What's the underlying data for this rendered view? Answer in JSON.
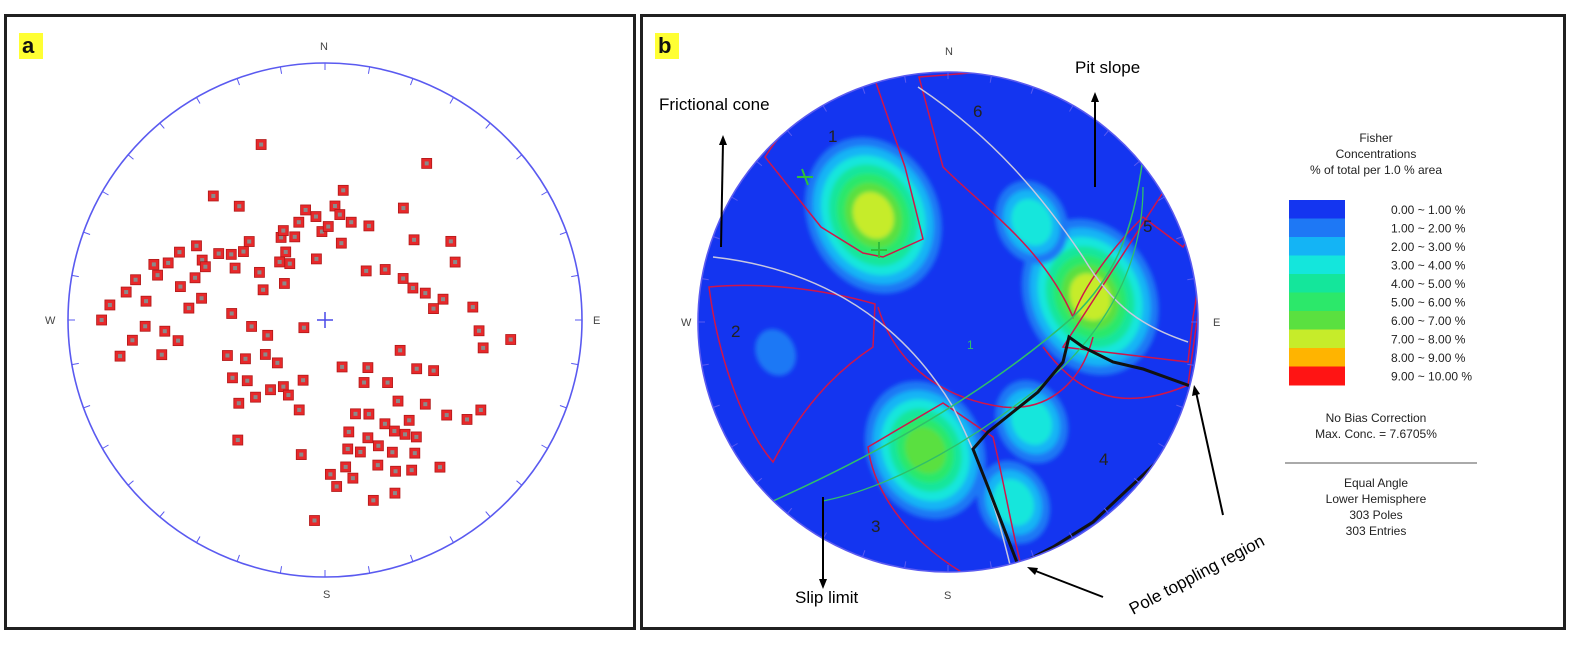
{
  "chart_data": [
    {
      "type": "scatter",
      "panel_label": "a",
      "plot": "equal-angle stereonet, pole plot",
      "direction_labels": {
        "N": "N",
        "E": "E",
        "S": "S",
        "W": "W"
      },
      "marker_color": "#e8282a",
      "net_color": "#5a5af0",
      "note": "poles as (trend, plunge) in degrees, read approximately from the net",
      "poles": [
        [
          332,
          50
        ],
        [
          330,
          56
        ],
        [
          335,
          48
        ],
        [
          340,
          52
        ],
        [
          350,
          43
        ],
        [
          355,
          46
        ],
        [
          358,
          52
        ],
        [
          345,
          47
        ],
        [
          328,
          61
        ],
        [
          352,
          63
        ],
        [
          15,
          47
        ],
        [
          5,
          42
        ],
        [
          8,
          45
        ],
        [
          2,
          50
        ],
        [
          290,
          24
        ],
        [
          295,
          26
        ],
        [
          300,
          30
        ],
        [
          285,
          22
        ],
        [
          288,
          20
        ],
        [
          296,
          34
        ],
        [
          302,
          38
        ],
        [
          305,
          42
        ],
        [
          310,
          45
        ],
        [
          282,
          16
        ],
        [
          278,
          14
        ],
        [
          274,
          10
        ],
        [
          270,
          8
        ],
        [
          276,
          20
        ],
        [
          283,
          30
        ],
        [
          288,
          34
        ],
        [
          294,
          36
        ],
        [
          268,
          20
        ],
        [
          264,
          16
        ],
        [
          260,
          12
        ],
        [
          266,
          26
        ],
        [
          275,
          34
        ],
        [
          280,
          38
        ],
        [
          262,
          30
        ],
        [
          258,
          24
        ],
        [
          300,
          46
        ],
        [
          316,
          44
        ],
        [
          322,
          58
        ],
        [
          312,
          66
        ],
        [
          306,
          55
        ],
        [
          296,
          60
        ],
        [
          318,
          24
        ],
        [
          323,
          32
        ],
        [
          340,
          18
        ],
        [
          8,
          36
        ],
        [
          12,
          56
        ],
        [
          25,
          46
        ],
        [
          35,
          34
        ],
        [
          33,
          18
        ],
        [
          48,
          40
        ],
        [
          58,
          30
        ],
        [
          66,
          32
        ],
        [
          70,
          50
        ],
        [
          75,
          46
        ],
        [
          80,
          40
        ],
        [
          85,
          30
        ],
        [
          94,
          28
        ],
        [
          100,
          26
        ],
        [
          84,
          44
        ],
        [
          62,
          52
        ],
        [
          50,
          56
        ],
        [
          40,
          62
        ],
        [
          96,
          18
        ],
        [
          150,
          40
        ],
        [
          148,
          36
        ],
        [
          145,
          33
        ],
        [
          153,
          30
        ],
        [
          157,
          34
        ],
        [
          160,
          28
        ],
        [
          155,
          24
        ],
        [
          150,
          22
        ],
        [
          146,
          26
        ],
        [
          142,
          30
        ],
        [
          140,
          36
        ],
        [
          138,
          44
        ],
        [
          160,
          38
        ],
        [
          165,
          34
        ],
        [
          168,
          42
        ],
        [
          162,
          48
        ],
        [
          170,
          26
        ],
        [
          172,
          30
        ],
        [
          176,
          24
        ],
        [
          178,
          28
        ],
        [
          165,
          18
        ],
        [
          158,
          18
        ],
        [
          142,
          18
        ],
        [
          135,
          52
        ],
        [
          130,
          36
        ],
        [
          128,
          28
        ],
        [
          125,
          22
        ],
        [
          120,
          20
        ],
        [
          170,
          36
        ],
        [
          155,
          46
        ],
        [
          148,
          58
        ],
        [
          138,
          62
        ],
        [
          118,
          46
        ],
        [
          115,
          40
        ],
        [
          112,
          55
        ],
        [
          226,
          40
        ],
        [
          222,
          46
        ],
        [
          232,
          48
        ],
        [
          238,
          44
        ],
        [
          218,
          52
        ],
        [
          244,
          52
        ],
        [
          250,
          46
        ],
        [
          212,
          56
        ],
        [
          206,
          54
        ],
        [
          196,
          50
        ],
        [
          200,
          62
        ],
        [
          228,
          62
        ],
        [
          240,
          60
        ],
        [
          255,
          64
        ],
        [
          265,
          58
        ],
        [
          190,
          34
        ],
        [
          216,
          30
        ],
        [
          183,
          14
        ],
        [
          274,
          50
        ],
        [
          160,
          68
        ],
        [
          250,
          80
        ]
      ]
    },
    {
      "type": "contour",
      "panel_label": "b",
      "plot": "Fisher concentration contours, equal-angle stereonet",
      "direction_labels": {
        "N": "N",
        "E": "E",
        "S": "S",
        "W": "W"
      },
      "legend": {
        "title_lines": [
          "Fisher",
          "Concentrations",
          "% of total per 1.0 % area"
        ],
        "bins": [
          {
            "label": "0.00 ~  1.00 %",
            "color": "#1435f0"
          },
          {
            "label": "1.00 ~  2.00 %",
            "color": "#1e78f5"
          },
          {
            "label": "2.00 ~  3.00 %",
            "color": "#14b4f5"
          },
          {
            "label": "3.00 ~  4.00 %",
            "color": "#14e6dc"
          },
          {
            "label": "4.00 ~  5.00 %",
            "color": "#14e69b"
          },
          {
            "label": "5.00 ~  6.00 %",
            "color": "#2ce86a"
          },
          {
            "label": "6.00 ~  7.00 %",
            "color": "#5ae040"
          },
          {
            "label": "7.00 ~  8.00 %",
            "color": "#c6ec2a"
          },
          {
            "label": "8.00 ~  9.00 %",
            "color": "#ffb400"
          },
          {
            "label": "9.00 ~ 10.00 %",
            "color": "#ff1414"
          }
        ],
        "bias": "No Bias Correction",
        "max_conc": "Max. Conc. = 7.6705%",
        "projection_lines": [
          "Equal Angle",
          "Lower Hemisphere",
          "303 Poles",
          "303 Entries"
        ]
      },
      "concentrations": [
        {
          "region": "1",
          "trend_plunge": [
            325,
            35
          ],
          "peak_percent": 7.67
        },
        {
          "region": "5",
          "trend_plunge": [
            80,
            30
          ],
          "peak_percent": 7.2
        },
        {
          "region": "3",
          "trend_plunge": [
            190,
            35
          ],
          "peak_percent": 6.5
        },
        {
          "region": "6",
          "trend_plunge": [
            40,
            35
          ],
          "peak_percent": 3.5
        },
        {
          "region": "4",
          "trend_plunge": [
            140,
            35
          ],
          "peak_percent": 3.5
        },
        {
          "region": "4",
          "trend_plunge": [
            160,
            15
          ],
          "peak_percent": 3.2
        },
        {
          "region": "2",
          "trend_plunge": [
            260,
            20
          ],
          "peak_percent": 1.5
        }
      ],
      "region_labels": [
        "1",
        "2",
        "3",
        "4",
        "5",
        "6"
      ],
      "annotations": {
        "frictional_cone": "Frictional cone",
        "pit_slope": "Pit slope",
        "slip_limit": "Slip limit",
        "pole_toppling": "Pole toppling region"
      },
      "center_mark": "1"
    }
  ]
}
